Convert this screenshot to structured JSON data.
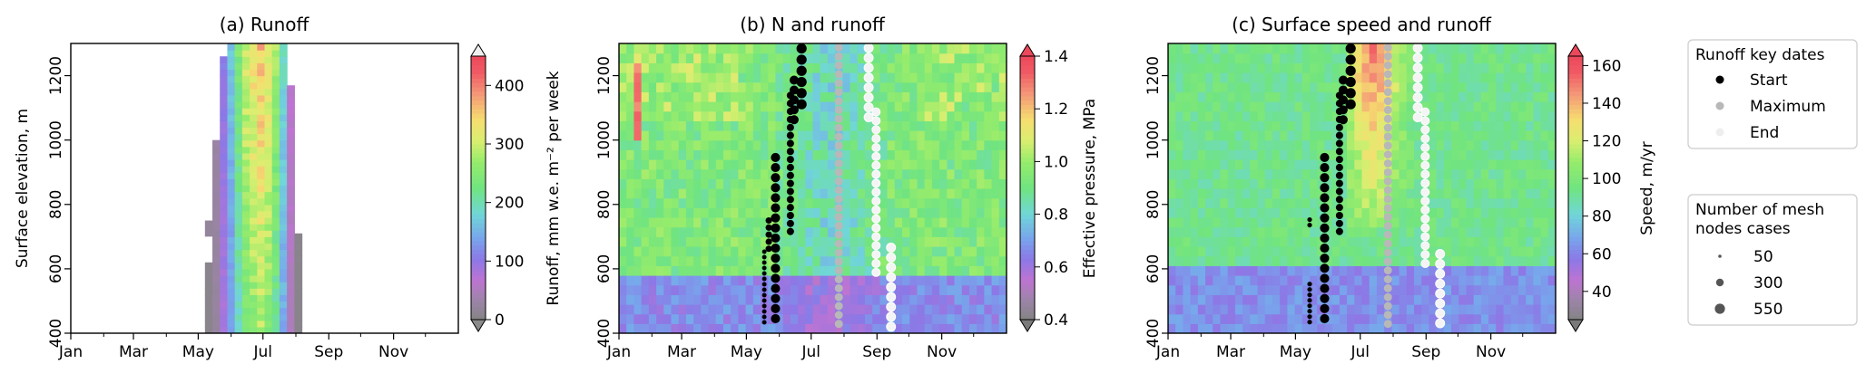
{
  "figure": {
    "legend_dates": {
      "title": "Runoff key dates",
      "entries": [
        {
          "label": "Start",
          "color": "#000000"
        },
        {
          "label": "Maximum",
          "color": "#b8b8b8"
        },
        {
          "label": "End",
          "color": "#eeeeee"
        }
      ]
    },
    "legend_sizes": {
      "title_lines": [
        "Number of mesh",
        "nodes cases"
      ],
      "entries": [
        {
          "label": "50",
          "value": 50
        },
        {
          "label": "300",
          "value": 300
        },
        {
          "label": "550",
          "value": 550
        }
      ]
    }
  },
  "chart_data": [
    {
      "type": "heatmap",
      "title": "(a) Runoff",
      "ylabel": "Surface elevation, m",
      "x_tick_labels": [
        "Jan",
        "Mar",
        "May",
        "Jul",
        "Sep",
        "Nov"
      ],
      "y_tick_labels": [
        "400",
        "600",
        "800",
        "1000",
        "1200"
      ],
      "ylim": [
        400,
        1300
      ],
      "colorbar": {
        "label": "Runoff, mm w.e. m⁻² per week",
        "ticks": [
          "0",
          "100",
          "200",
          "300",
          "400"
        ],
        "range": [
          0,
          450
        ],
        "colormap": "gist_rainbow-like"
      },
      "weeks_start": 18,
      "weekly_runoff": [
        10,
        30,
        95,
        150,
        220,
        280,
        305,
        330,
        300,
        250,
        170,
        60,
        8
      ],
      "band_tops": [
        620,
        1000,
        1260,
        1300,
        1300,
        1300,
        1300,
        1300,
        1300,
        1300,
        1300,
        1170,
        710
      ],
      "extra_bands": [
        {
          "week": 18,
          "from": 700,
          "to": 750
        }
      ]
    },
    {
      "type": "heatmap",
      "title": "(b) N and runoff",
      "x_tick_labels": [
        "Jan",
        "Mar",
        "May",
        "Jul",
        "Sep",
        "Nov"
      ],
      "y_tick_labels": [
        "400",
        "600",
        "800",
        "1000",
        "1200"
      ],
      "ylim": [
        400,
        1300
      ],
      "colorbar": {
        "label": "Effective pressure, MPa",
        "ticks": [
          "0.4",
          "0.6",
          "0.8",
          "1.0",
          "1.2",
          "1.4"
        ],
        "range": [
          0.4,
          1.4
        ]
      },
      "high_pressure_patches": [
        {
          "week_from": 2,
          "week_to": 3,
          "elev_from": 1000,
          "elev_to": 1240
        }
      ],
      "key_date_points": [
        {
          "kind": "Start",
          "week": 19.0,
          "elev_from": 420,
          "elev_to": 660,
          "n": 40
        },
        {
          "kind": "Start",
          "week": 19.6,
          "elev_from": 660,
          "elev_to": 760,
          "n": 150
        },
        {
          "kind": "Start",
          "week": 20.5,
          "elev_from": 440,
          "elev_to": 960,
          "n": 420
        },
        {
          "kind": "Start",
          "week": 22.5,
          "elev_from": 700,
          "elev_to": 1150,
          "n": 220
        },
        {
          "kind": "Start",
          "week": 23.0,
          "elev_from": 1050,
          "elev_to": 1200,
          "n": 400
        },
        {
          "kind": "Start",
          "week": 24.0,
          "elev_from": 1100,
          "elev_to": 1300,
          "n": 550
        },
        {
          "kind": "Maximum",
          "week": 29.0,
          "elev_from": 420,
          "elev_to": 1300,
          "n": 300
        },
        {
          "kind": "End",
          "week": 33.0,
          "elev_from": 1060,
          "elev_to": 1300,
          "n": 400
        },
        {
          "kind": "End",
          "week": 34.0,
          "elev_from": 580,
          "elev_to": 1100,
          "n": 300
        },
        {
          "kind": "End",
          "week": 36.0,
          "elev_from": 420,
          "elev_to": 680,
          "n": 400
        }
      ]
    },
    {
      "type": "heatmap",
      "title": "(c) Surface speed and runoff",
      "x_tick_labels": [
        "Jan",
        "Mar",
        "May",
        "Jul",
        "Sep",
        "Nov"
      ],
      "y_tick_labels": [
        "400",
        "600",
        "800",
        "1000",
        "1200"
      ],
      "ylim": [
        400,
        1300
      ],
      "colorbar": {
        "label": "Speed, m/yr",
        "ticks": [
          "40",
          "60",
          "80",
          "100",
          "120",
          "140",
          "160"
        ],
        "range": [
          25,
          165
        ]
      },
      "key_date_points": [
        {
          "kind": "Start",
          "week": 18.5,
          "elev_from": 420,
          "elev_to": 560,
          "n": 50
        },
        {
          "kind": "Start",
          "week": 18.5,
          "elev_from": 720,
          "elev_to": 760,
          "n": 50
        },
        {
          "kind": "Start",
          "week": 20.5,
          "elev_from": 420,
          "elev_to": 960,
          "n": 420
        },
        {
          "kind": "Start",
          "week": 22.5,
          "elev_from": 700,
          "elev_to": 1150,
          "n": 220
        },
        {
          "kind": "Start",
          "week": 23.0,
          "elev_from": 1050,
          "elev_to": 1200,
          "n": 400
        },
        {
          "kind": "Start",
          "week": 24.0,
          "elev_from": 1100,
          "elev_to": 1300,
          "n": 550
        },
        {
          "kind": "Maximum",
          "week": 29.0,
          "elev_from": 420,
          "elev_to": 1300,
          "n": 300
        },
        {
          "kind": "End",
          "week": 33.0,
          "elev_from": 1060,
          "elev_to": 1300,
          "n": 400
        },
        {
          "kind": "End",
          "week": 34.0,
          "elev_from": 600,
          "elev_to": 1100,
          "n": 300
        },
        {
          "kind": "End",
          "week": 36.0,
          "elev_from": 420,
          "elev_to": 660,
          "n": 400
        }
      ]
    }
  ]
}
